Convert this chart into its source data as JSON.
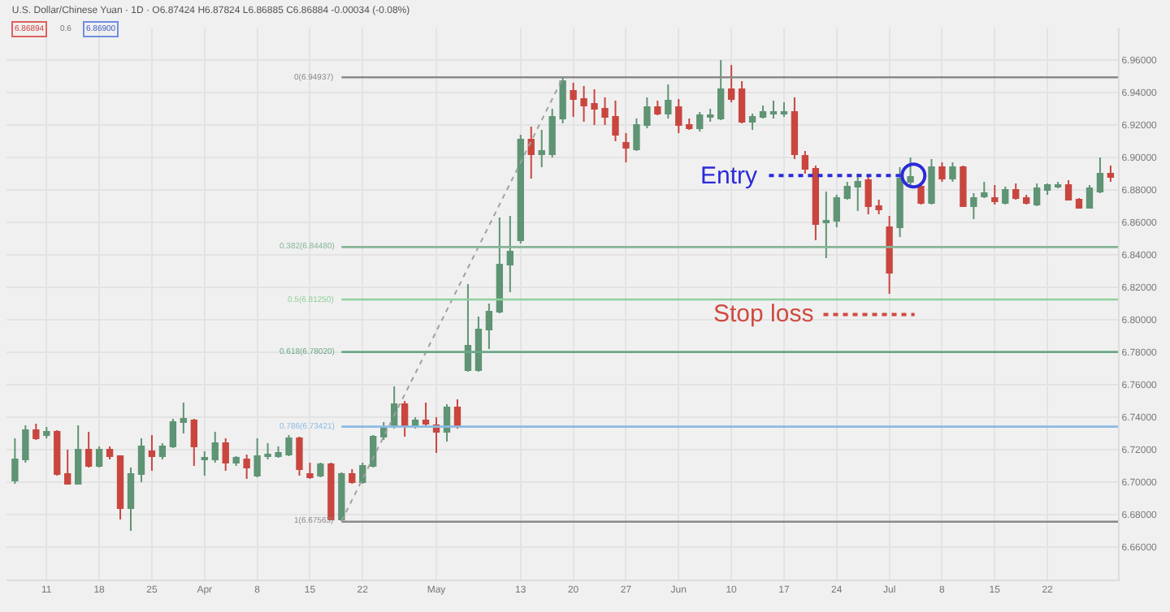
{
  "chart_data": {
    "type": "candlestick",
    "title": "U.S. Dollar/Chinese Yuan · 1D · O6.87424 H6.87824 L6.86885 C6.86884 -0.00034 (-0.08%)",
    "annotations": [
      "6.86894",
      "0.6",
      "6.86900",
      "Stop loss",
      "Entry"
    ],
    "categories": [
      null,
      null,
      null,
      "11",
      null,
      null,
      null,
      null,
      "18",
      null,
      null,
      null,
      null,
      "25",
      null,
      null,
      null,
      null,
      "Apr",
      null,
      null,
      null,
      null,
      "8",
      null,
      null,
      null,
      null,
      "15",
      null,
      null,
      null,
      null,
      "22",
      null,
      null,
      null,
      null,
      null,
      null,
      "May",
      null,
      null,
      null,
      null,
      null,
      null,
      null,
      "13",
      null,
      null,
      null,
      null,
      "20",
      null,
      null,
      null,
      null,
      "27",
      null,
      null,
      null,
      null,
      "Jun",
      null,
      null,
      null,
      null,
      "10",
      null,
      null,
      null,
      null,
      "17",
      null,
      null,
      null,
      null,
      "24",
      null,
      null,
      null,
      null,
      "Jul",
      null,
      null,
      null,
      null,
      "8",
      null,
      null,
      null,
      null,
      "15",
      null,
      null,
      null,
      null,
      "22",
      null,
      null,
      null,
      null,
      null,
      null
    ],
    "series": [
      {
        "type": "line",
        "values": [
          null,
          null,
          null,
          null,
          null,
          null,
          null,
          null,
          null,
          null,
          null,
          null,
          null,
          null,
          null,
          null,
          null,
          null,
          null,
          null,
          null,
          null,
          null,
          null,
          null,
          null,
          null,
          null,
          null,
          null,
          null,
          6.676,
          null,
          null,
          null,
          null,
          null,
          null,
          null,
          null,
          null,
          null,
          null,
          null,
          null,
          null,
          null,
          null,
          null,
          null,
          null,
          null,
          6.949,
          null,
          null,
          null,
          null,
          null,
          null,
          null,
          null,
          null,
          null,
          null,
          null,
          null,
          null,
          null,
          null,
          null,
          null,
          null,
          null,
          null,
          null,
          null,
          null,
          null,
          null,
          null,
          null,
          null,
          null,
          null,
          null,
          null,
          null,
          null,
          null,
          null,
          null,
          null,
          null,
          null,
          null,
          null,
          null,
          null,
          null,
          null,
          null,
          null,
          null,
          null,
          null
        ],
        "color": "#a0a0a0",
        "line_style": "dotted"
      },
      {
        "ohlc": [
          [
            6.701,
            6.727,
            6.699,
            6.714
          ],
          [
            6.714,
            6.735,
            6.712,
            6.732
          ],
          [
            6.732,
            6.736,
            6.726,
            6.727
          ],
          [
            6.729,
            6.734,
            6.727,
            6.731
          ],
          [
            6.731,
            6.732,
            6.704,
            6.705
          ],
          [
            6.705,
            6.72,
            6.699,
            6.699
          ],
          [
            6.699,
            6.735,
            6.699,
            6.72
          ],
          [
            6.72,
            6.731,
            6.709,
            6.71
          ],
          [
            6.71,
            6.722,
            6.709,
            6.72
          ],
          [
            6.72,
            6.722,
            6.714,
            6.716
          ],
          [
            6.716,
            6.716,
            6.677,
            6.684
          ],
          [
            6.684,
            6.709,
            6.67,
            6.705
          ],
          [
            6.705,
            6.727,
            6.7,
            6.722
          ],
          [
            6.719,
            6.729,
            6.707,
            6.716
          ],
          [
            6.716,
            6.724,
            6.714,
            6.722
          ],
          [
            6.722,
            6.739,
            6.721,
            6.737
          ],
          [
            6.737,
            6.749,
            6.73,
            6.739
          ],
          [
            6.738,
            6.739,
            6.71,
            6.722
          ],
          [
            6.714,
            6.719,
            6.704,
            6.715
          ],
          [
            6.714,
            6.731,
            6.712,
            6.724
          ],
          [
            6.724,
            6.727,
            6.707,
            6.712
          ],
          [
            6.712,
            6.716,
            6.71,
            6.715
          ],
          [
            6.714,
            6.717,
            6.702,
            6.709
          ],
          [
            6.704,
            6.727,
            6.703,
            6.716
          ],
          [
            6.716,
            6.724,
            6.714,
            6.717
          ],
          [
            6.716,
            6.722,
            6.715,
            6.718
          ],
          [
            6.717,
            6.729,
            6.716,
            6.727
          ],
          [
            6.727,
            6.728,
            6.704,
            6.708
          ],
          [
            6.705,
            6.712,
            6.702,
            6.703
          ],
          [
            6.704,
            6.712,
            6.703,
            6.711
          ],
          [
            6.711,
            6.712,
            6.677,
            6.677
          ],
          [
            6.677,
            6.706,
            6.676,
            6.705
          ],
          [
            6.705,
            6.708,
            6.699,
            6.7
          ],
          [
            6.7,
            6.712,
            6.699,
            6.71
          ],
          [
            6.71,
            6.729,
            6.709,
            6.728
          ],
          [
            6.728,
            6.737,
            6.726,
            6.734
          ],
          [
            6.734,
            6.759,
            6.733,
            6.748
          ],
          [
            6.748,
            6.75,
            6.728,
            6.734
          ],
          [
            6.734,
            6.74,
            6.733,
            6.738
          ],
          [
            6.738,
            6.749,
            6.734,
            6.736
          ],
          [
            6.735,
            6.74,
            6.718,
            6.731
          ],
          [
            6.731,
            6.748,
            6.725,
            6.746
          ],
          [
            6.746,
            6.751,
            6.733,
            6.734
          ],
          [
            6.769,
            6.822,
            6.768,
            6.784
          ],
          [
            6.769,
            6.802,
            6.768,
            6.794
          ],
          [
            6.794,
            6.81,
            6.782,
            6.805
          ],
          [
            6.805,
            6.863,
            6.804,
            6.834
          ],
          [
            6.834,
            6.864,
            6.817,
            6.842
          ],
          [
            6.849,
            6.914,
            6.847,
            6.911
          ],
          [
            6.911,
            6.919,
            6.887,
            6.902
          ],
          [
            6.902,
            6.917,
            6.894,
            6.904
          ],
          [
            6.902,
            6.93,
            6.9,
            6.925
          ],
          [
            6.924,
            6.949,
            6.921,
            6.947
          ],
          [
            6.941,
            6.946,
            6.925,
            6.936
          ],
          [
            6.936,
            6.944,
            6.922,
            6.932
          ],
          [
            6.933,
            6.942,
            6.92,
            6.93
          ],
          [
            6.93,
            6.937,
            6.92,
            6.925
          ],
          [
            6.925,
            6.935,
            6.91,
            6.914
          ],
          [
            6.909,
            6.915,
            6.897,
            6.906
          ],
          [
            6.905,
            6.924,
            6.904,
            6.92
          ],
          [
            6.92,
            6.937,
            6.918,
            6.931
          ],
          [
            6.931,
            6.935,
            6.926,
            6.927
          ],
          [
            6.927,
            6.945,
            6.924,
            6.935
          ],
          [
            6.931,
            6.936,
            6.915,
            6.92
          ],
          [
            6.92,
            6.924,
            6.917,
            6.918
          ],
          [
            6.918,
            6.928,
            6.916,
            6.926
          ],
          [
            6.925,
            6.93,
            6.922,
            6.926
          ],
          [
            6.924,
            6.96,
            6.923,
            6.942
          ],
          [
            6.942,
            6.957,
            6.934,
            6.936
          ],
          [
            6.942,
            6.947,
            6.921,
            6.922
          ],
          [
            6.922,
            6.927,
            6.917,
            6.925
          ],
          [
            6.925,
            6.932,
            6.924,
            6.928
          ],
          [
            6.927,
            6.935,
            6.924,
            6.928
          ],
          [
            6.927,
            6.934,
            6.925,
            6.928
          ],
          [
            6.928,
            6.937,
            6.899,
            6.902
          ],
          [
            6.901,
            6.904,
            6.89,
            6.893
          ],
          [
            6.893,
            6.895,
            6.849,
            6.859
          ],
          [
            6.86,
            6.879,
            6.838,
            6.861
          ],
          [
            6.861,
            6.877,
            6.857,
            6.875
          ],
          [
            6.875,
            6.885,
            6.874,
            6.882
          ],
          [
            6.882,
            6.89,
            6.867,
            6.885
          ],
          [
            6.886,
            6.888,
            6.865,
            6.87
          ],
          [
            6.87,
            6.874,
            6.865,
            6.868
          ],
          [
            6.857,
            6.864,
            6.816,
            6.829
          ],
          [
            6.857,
            6.894,
            6.851,
            6.887
          ],
          [
            6.885,
            6.9,
            6.883,
            6.888
          ],
          [
            6.882,
            6.884,
            6.871,
            6.872
          ],
          [
            6.872,
            6.899,
            6.871,
            6.894
          ],
          [
            6.894,
            6.897,
            6.885,
            6.887
          ],
          [
            6.887,
            6.897,
            6.885,
            6.894
          ],
          [
            6.894,
            6.895,
            6.87,
            6.87
          ],
          [
            6.87,
            6.878,
            6.862,
            6.875
          ],
          [
            6.876,
            6.885,
            6.875,
            6.878
          ],
          [
            6.875,
            6.883,
            6.871,
            6.873
          ],
          [
            6.872,
            6.882,
            6.871,
            6.88
          ],
          [
            6.88,
            6.884,
            6.874,
            6.875
          ],
          [
            6.875,
            6.877,
            6.871,
            6.872
          ],
          [
            6.871,
            6.884,
            6.87,
            6.881
          ],
          [
            6.88,
            6.884,
            6.877,
            6.883
          ],
          [
            6.882,
            6.885,
            6.881,
            6.883
          ],
          [
            6.883,
            6.886,
            6.874,
            6.874
          ],
          [
            6.874,
            6.875,
            6.869,
            6.869
          ],
          [
            6.869,
            6.883,
            6.869,
            6.881
          ],
          [
            6.879,
            6.9,
            6.878,
            6.89
          ],
          [
            6.89,
            6.895,
            6.885,
            6.888
          ]
        ],
        "colors": [
          "#5f9474",
          "#5f9474",
          "#c9463f",
          "#5f9474",
          "#c9463f",
          "#c9463f",
          "#5f9474",
          "#c9463f",
          "#5f9474",
          "#c9463f",
          "#c9463f",
          "#5f9474",
          "#5f9474",
          "#c9463f",
          "#5f9474",
          "#5f9474",
          "#5f9474",
          "#c9463f",
          "#5f9474",
          "#5f9474",
          "#c9463f",
          "#5f9474",
          "#c9463f",
          "#5f9474",
          "#5f9474",
          "#5f9474",
          "#5f9474",
          "#c9463f",
          "#c9463f",
          "#5f9474",
          "#c9463f",
          "#5f9474",
          "#c9463f",
          "#5f9474",
          "#5f9474",
          "#5f9474",
          "#5f9474",
          "#c9463f",
          "#5f9474",
          "#c9463f",
          "#c9463f",
          "#5f9474",
          "#c9463f",
          "#5f9474",
          "#5f9474",
          "#5f9474",
          "#5f9474",
          "#5f9474",
          "#5f9474",
          "#c9463f",
          "#5f9474",
          "#5f9474",
          "#5f9474",
          "#c9463f",
          "#c9463f",
          "#c9463f",
          "#c9463f",
          "#c9463f",
          "#c9463f",
          "#5f9474",
          "#5f9474",
          "#c9463f",
          "#5f9474",
          "#c9463f",
          "#c9463f",
          "#5f9474",
          "#5f9474",
          "#5f9474",
          "#c9463f",
          "#c9463f",
          "#5f9474",
          "#5f9474",
          "#5f9474",
          "#5f9474",
          "#c9463f",
          "#c9463f",
          "#c9463f",
          "#5f9474",
          "#5f9474",
          "#5f9474",
          "#5f9474",
          "#c9463f",
          "#c9463f",
          "#c9463f",
          "#5f9474",
          "#5f9474",
          "#c9463f",
          "#5f9474",
          "#c9463f",
          "#5f9474",
          "#c9463f",
          "#5f9474",
          "#5f9474",
          "#c9463f",
          "#5f9474",
          "#c9463f",
          "#c9463f",
          "#5f9474",
          "#5f9474",
          "#5f9474",
          "#c9463f",
          "#c9463f",
          "#5f9474",
          "#5f9474",
          "#c9463f"
        ]
      }
    ],
    "ref_lines": [
      {
        "axis": "y",
        "value": 6.94937,
        "label": "0(6.94937)",
        "color": "#8a8a8a"
      },
      {
        "axis": "y",
        "value": 6.8448,
        "label": "0.382(6.84480)",
        "color": "#86b596"
      },
      {
        "axis": "y",
        "value": 6.8125,
        "label": "0.5(6.81250)",
        "color": "#8fd09c"
      },
      {
        "axis": "y",
        "value": 6.7802,
        "label": "0.618(6.78020)",
        "color": "#6aa888"
      },
      {
        "axis": "y",
        "value": 6.73421,
        "label": "0.786(6.73421)",
        "color": "#8bbbe3"
      },
      {
        "axis": "y",
        "value": 6.67563,
        "label": "1(6.67563)",
        "color": "#8a8a8a"
      }
    ],
    "ylim": [
      6.64,
      6.98
    ],
    "yticks": [
      {
        "value": 6.66,
        "label": "6.66000"
      },
      {
        "value": 6.68,
        "label": "6.68000"
      },
      {
        "value": 6.7,
        "label": "6.70000"
      },
      {
        "value": 6.72,
        "label": "6.72000"
      },
      {
        "value": 6.74,
        "label": "6.74000"
      },
      {
        "value": 6.76,
        "label": "6.76000"
      },
      {
        "value": 6.78,
        "label": "6.78000"
      },
      {
        "value": 6.8,
        "label": "6.80000"
      },
      {
        "value": 6.82,
        "label": "6.82000"
      },
      {
        "value": 6.84,
        "label": "6.84000"
      },
      {
        "value": 6.86,
        "label": "6.86000"
      },
      {
        "value": 6.88,
        "label": "6.88000"
      },
      {
        "value": 6.9,
        "label": "6.90000"
      },
      {
        "value": 6.92,
        "label": "6.92000"
      },
      {
        "value": 6.94,
        "label": "6.94000"
      },
      {
        "value": 6.96,
        "label": "6.96000"
      }
    ],
    "grid": true
  }
}
